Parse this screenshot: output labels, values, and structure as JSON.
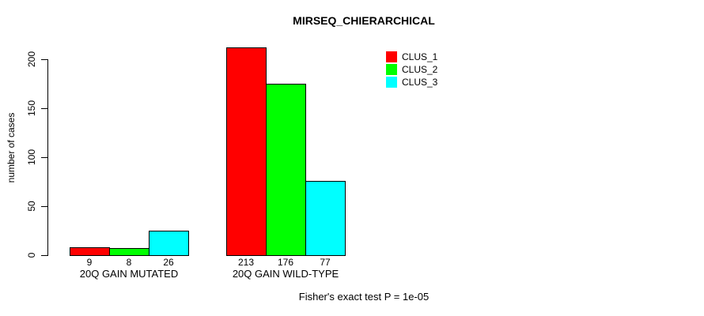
{
  "title": "MIRSEQ_CHIERARCHICAL",
  "footnote": "Fisher's exact test P = 1e-05",
  "chart_data": {
    "type": "bar",
    "title": "MIRSEQ_CHIERARCHICAL",
    "xlabel": "",
    "ylabel": "number of cases",
    "categories": [
      "20Q GAIN MUTATED",
      "20Q GAIN WILD-TYPE"
    ],
    "series": [
      {
        "name": "CLUS_1",
        "color": "#ff0000",
        "values": [
          9,
          213
        ]
      },
      {
        "name": "CLUS_2",
        "color": "#00ff00",
        "values": [
          8,
          176
        ]
      },
      {
        "name": "CLUS_3",
        "color": "#00ffff",
        "values": [
          26,
          77
        ]
      }
    ],
    "bar_value_labels": [
      [
        "9",
        "8",
        "26"
      ],
      [
        "213",
        "176",
        "77"
      ]
    ],
    "yticks": [
      0,
      50,
      100,
      150,
      200
    ],
    "ylim": [
      0,
      200
    ],
    "grid": false,
    "legend_position": "top-right",
    "annotation": "Fisher's exact test P = 1e-05"
  }
}
